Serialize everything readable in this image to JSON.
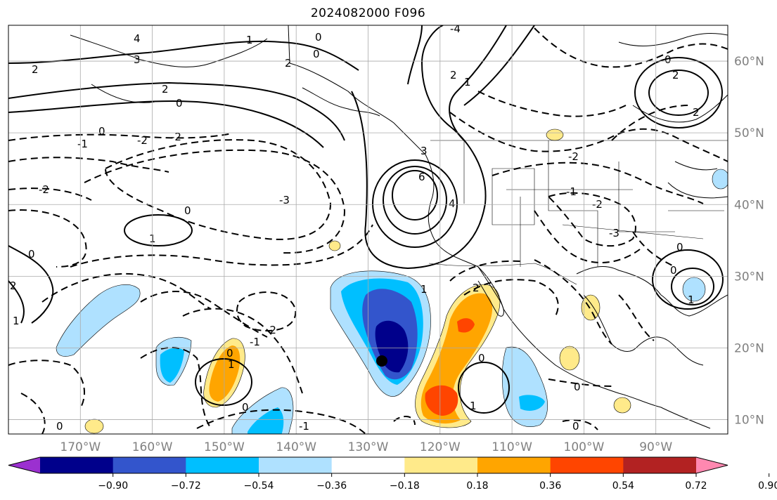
{
  "title": "2024082000 F096",
  "map": {
    "lon_range": [
      -180,
      -80
    ],
    "lat_range": [
      8,
      65
    ],
    "grid": true,
    "lon_labels": [
      "170°W",
      "160°W",
      "150°W",
      "140°W",
      "130°W",
      "120°W",
      "110°W",
      "100°W",
      "90°W"
    ],
    "lat_labels": [
      "60°N",
      "50°N",
      "40°N",
      "30°N",
      "20°N",
      "10°N"
    ]
  },
  "contour_labels": [
    "4",
    "3",
    "2",
    "1",
    "0",
    "-1",
    "-2",
    "-3",
    "6",
    "-4"
  ],
  "colorbar": {
    "ticks": [
      "−0.90",
      "−0.72",
      "−0.54",
      "−0.36",
      "−0.18",
      "0.18",
      "0.36",
      "0.54",
      "0.72",
      "0.90"
    ],
    "colors": [
      "#9b30d0",
      "#00008b",
      "#3355cc",
      "#00bfff",
      "#afe1ff",
      "#ffffff",
      "#ffea8a",
      "#ffa500",
      "#ff4500",
      "#b22222",
      "#ff88b0"
    ],
    "extend": "both"
  }
}
